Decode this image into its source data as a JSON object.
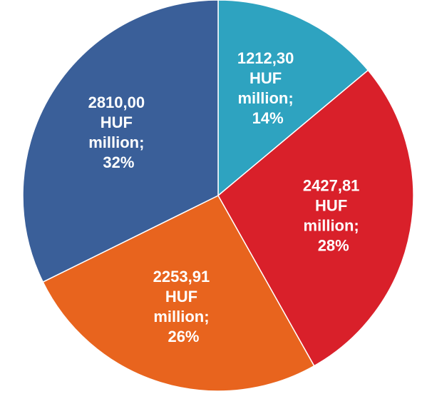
{
  "chart_data": {
    "type": "pie",
    "categories": [
      null,
      null,
      null,
      null
    ],
    "values": [
      1212.3,
      2427.81,
      2253.91,
      2810.0
    ],
    "value_labels": [
      "1212,30 HUF million; 14%",
      "2427,81 HUF million; 28%",
      "2253,91 HUF million; 26%",
      "2810,00 HUF million; 32%"
    ],
    "colors": [
      "#2ea3c0",
      "#d9202a",
      "#e8641e",
      "#3a5f99"
    ]
  }
}
